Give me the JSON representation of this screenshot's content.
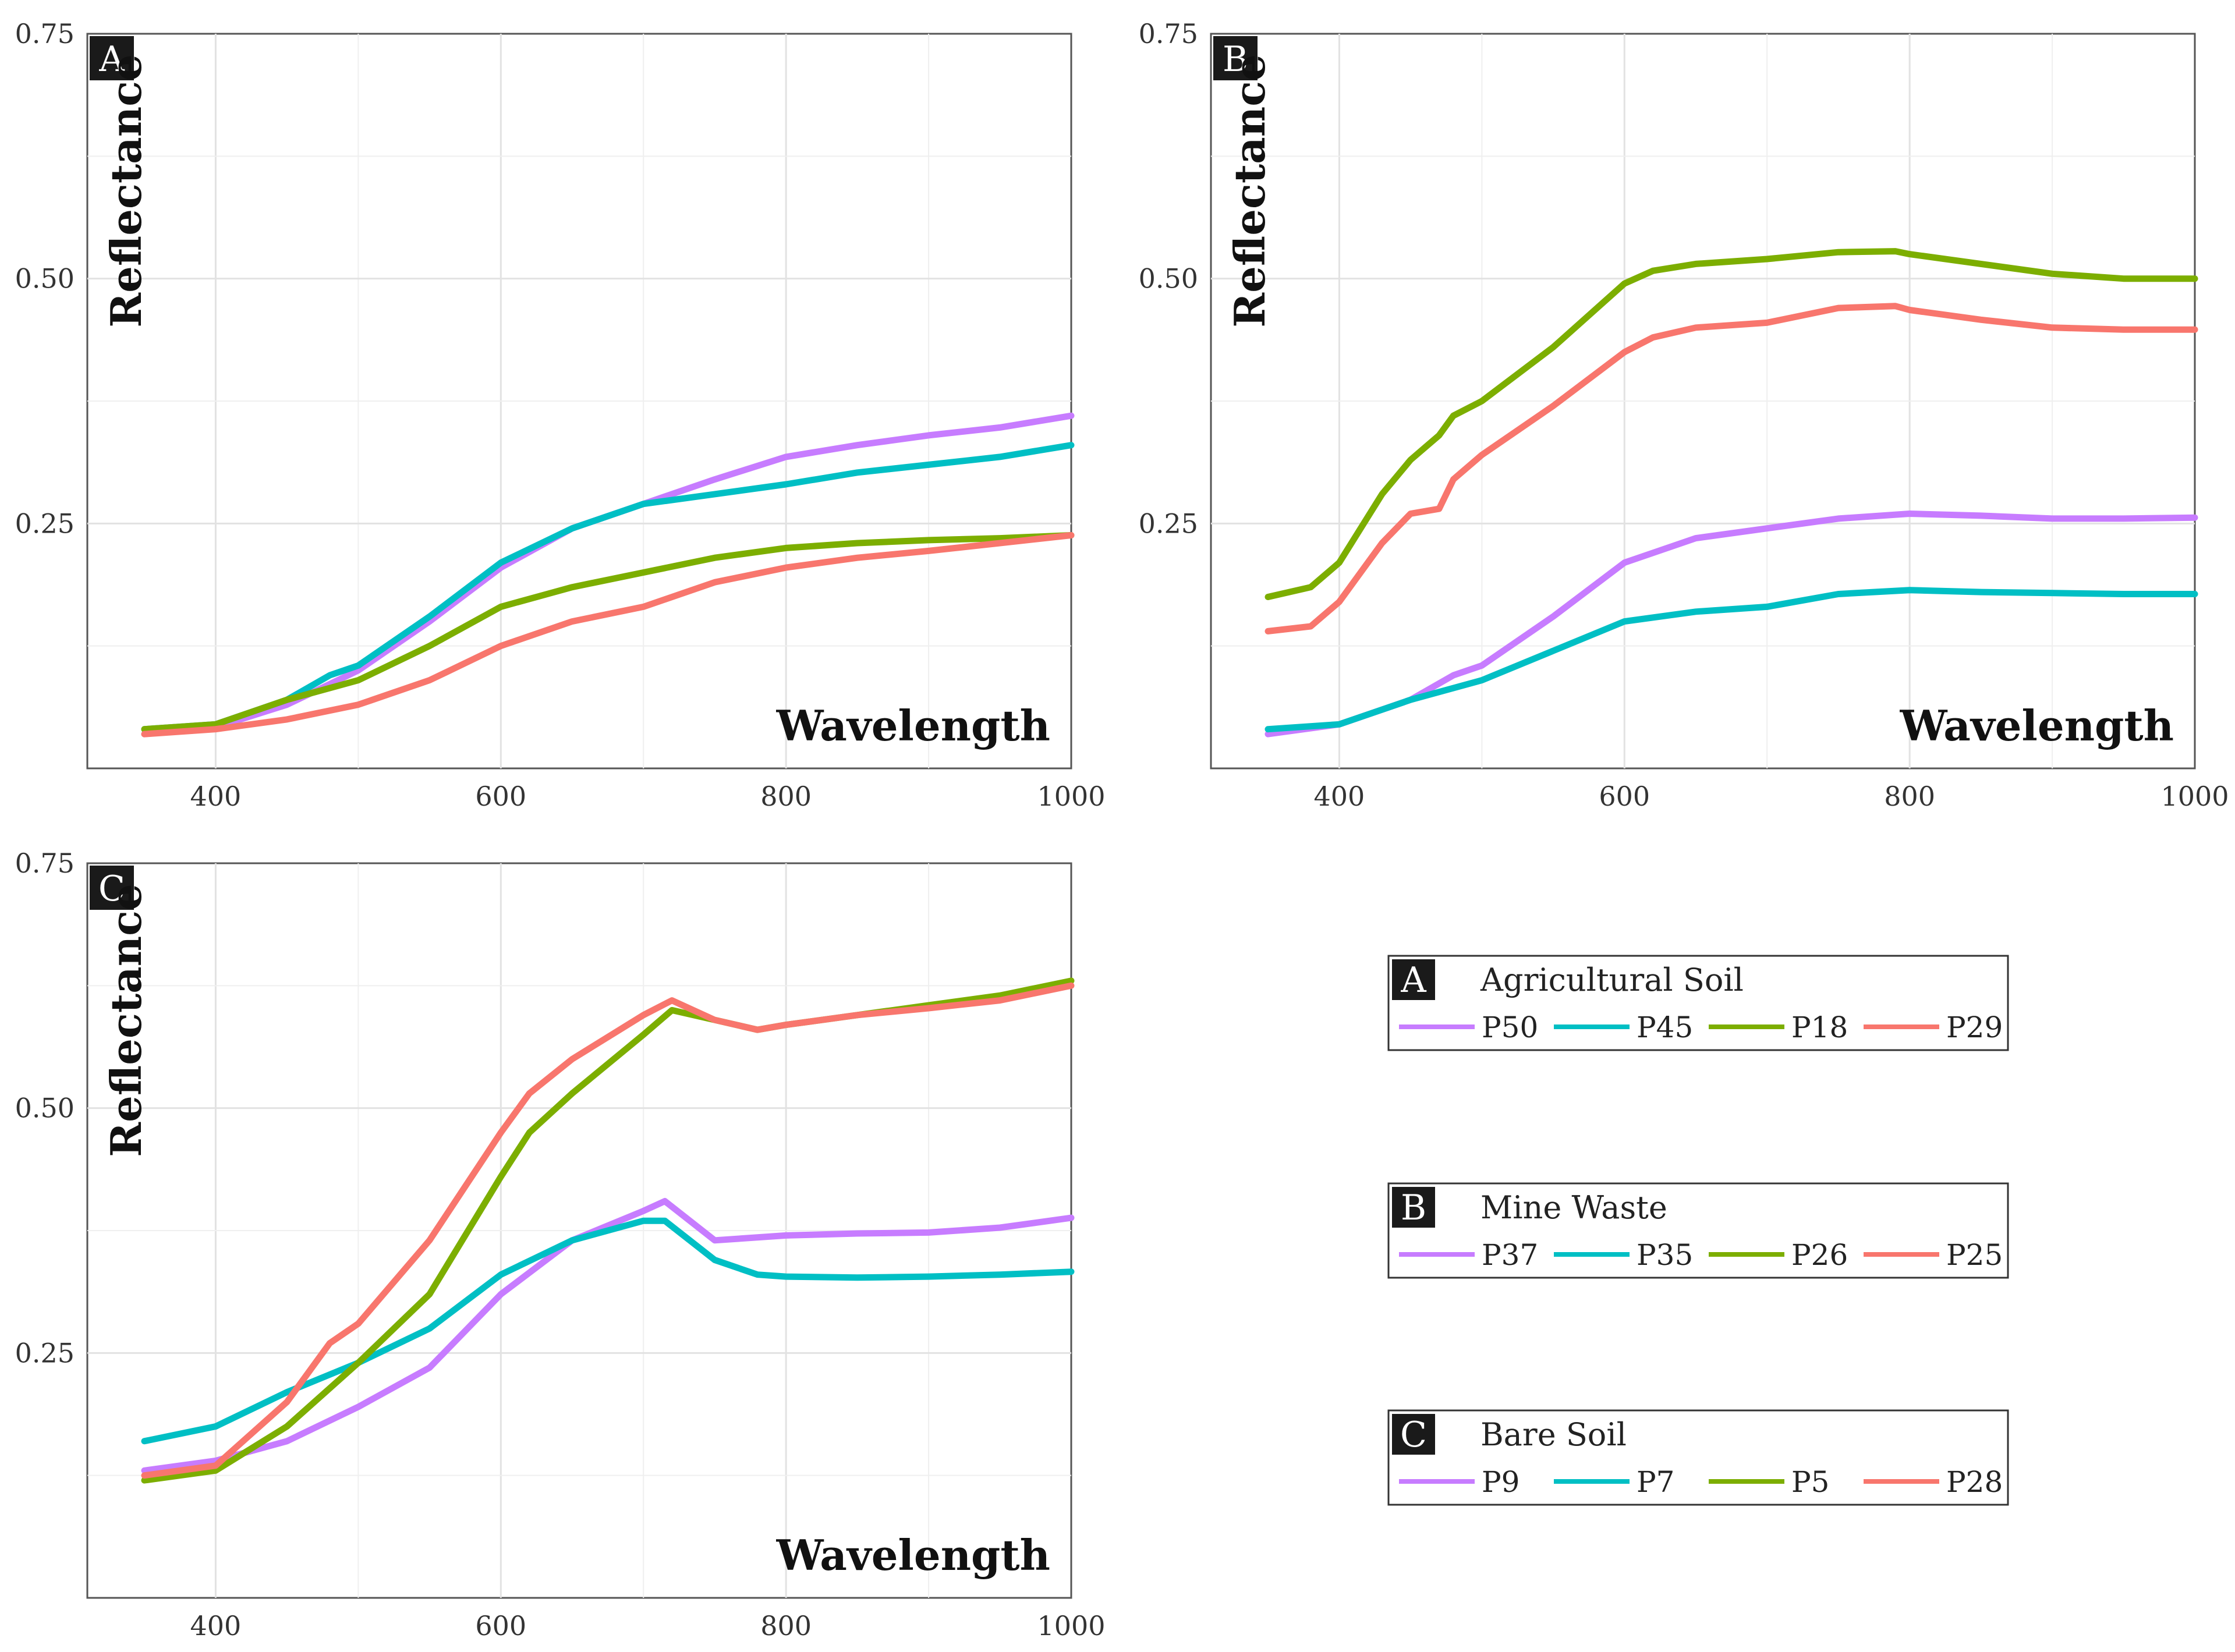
{
  "chart_data": [
    {
      "type": "line",
      "panel": "A",
      "title": "Agricultural Soil",
      "xlabel": "Wavelength",
      "ylabel": "Reflectance",
      "xlim": [
        310,
        1000
      ],
      "ylim": [
        0.0,
        0.75
      ],
      "xticks": [
        400,
        600,
        800,
        1000
      ],
      "yticks": [
        0.25,
        0.5,
        0.75
      ],
      "ytick_labels": [
        "0.25",
        "0.50",
        "0.75"
      ],
      "grid": true,
      "series": [
        {
          "name": "P50",
          "color": "#c77cff",
          "x": [
            350,
            400,
            450,
            500,
            550,
            600,
            650,
            700,
            750,
            800,
            850,
            900,
            950,
            1000
          ],
          "y": [
            0.035,
            0.042,
            0.065,
            0.1,
            0.15,
            0.205,
            0.245,
            0.27,
            0.295,
            0.318,
            0.33,
            0.34,
            0.348,
            0.36
          ]
        },
        {
          "name": "P45",
          "color": "#00bfc4",
          "x": [
            350,
            400,
            450,
            480,
            500,
            550,
            600,
            650,
            700,
            750,
            800,
            850,
            900,
            950,
            1000
          ],
          "y": [
            0.04,
            0.045,
            0.07,
            0.095,
            0.105,
            0.155,
            0.21,
            0.245,
            0.27,
            0.28,
            0.29,
            0.302,
            0.31,
            0.318,
            0.33
          ]
        },
        {
          "name": "P18",
          "color": "#7cae00",
          "x": [
            350,
            400,
            450,
            500,
            550,
            600,
            650,
            700,
            750,
            800,
            850,
            900,
            950,
            1000
          ],
          "y": [
            0.04,
            0.045,
            0.07,
            0.09,
            0.125,
            0.165,
            0.185,
            0.2,
            0.215,
            0.225,
            0.23,
            0.233,
            0.235,
            0.238
          ]
        },
        {
          "name": "P29",
          "color": "#f8766d",
          "x": [
            350,
            400,
            450,
            500,
            550,
            600,
            650,
            700,
            750,
            800,
            850,
            900,
            950,
            1000
          ],
          "y": [
            0.035,
            0.04,
            0.05,
            0.065,
            0.09,
            0.125,
            0.15,
            0.165,
            0.19,
            0.205,
            0.215,
            0.222,
            0.23,
            0.238
          ]
        }
      ]
    },
    {
      "type": "line",
      "panel": "B",
      "title": "Mine Waste",
      "xlabel": "Wavelength",
      "ylabel": "Reflectance",
      "xlim": [
        310,
        1000
      ],
      "ylim": [
        0.0,
        0.75
      ],
      "xticks": [
        400,
        600,
        800,
        1000
      ],
      "yticks": [
        0.25,
        0.5,
        0.75
      ],
      "ytick_labels": [
        "0.25",
        "0.50",
        "0.75"
      ],
      "grid": true,
      "series": [
        {
          "name": "P37",
          "color": "#c77cff",
          "x": [
            350,
            400,
            450,
            480,
            500,
            550,
            600,
            650,
            700,
            750,
            800,
            850,
            900,
            950,
            1000
          ],
          "y": [
            0.035,
            0.045,
            0.07,
            0.095,
            0.105,
            0.155,
            0.21,
            0.235,
            0.245,
            0.255,
            0.26,
            0.258,
            0.255,
            0.255,
            0.256
          ]
        },
        {
          "name": "P35",
          "color": "#00bfc4",
          "x": [
            350,
            400,
            450,
            500,
            550,
            600,
            650,
            700,
            750,
            800,
            850,
            900,
            950,
            1000
          ],
          "y": [
            0.04,
            0.045,
            0.07,
            0.09,
            0.12,
            0.15,
            0.16,
            0.165,
            0.178,
            0.182,
            0.18,
            0.179,
            0.178,
            0.178
          ]
        },
        {
          "name": "P26",
          "color": "#7cae00",
          "x": [
            350,
            380,
            400,
            430,
            450,
            470,
            480,
            500,
            550,
            600,
            620,
            650,
            700,
            750,
            790,
            800,
            850,
            900,
            950,
            1000
          ],
          "y": [
            0.175,
            0.185,
            0.21,
            0.28,
            0.315,
            0.34,
            0.36,
            0.375,
            0.43,
            0.495,
            0.508,
            0.515,
            0.52,
            0.527,
            0.528,
            0.525,
            0.515,
            0.505,
            0.5,
            0.5
          ]
        },
        {
          "name": "P25",
          "color": "#f8766d",
          "x": [
            350,
            380,
            400,
            430,
            450,
            470,
            480,
            500,
            550,
            600,
            620,
            650,
            700,
            750,
            790,
            800,
            850,
            900,
            950,
            1000
          ],
          "y": [
            0.14,
            0.145,
            0.17,
            0.23,
            0.26,
            0.265,
            0.295,
            0.32,
            0.37,
            0.425,
            0.44,
            0.45,
            0.455,
            0.47,
            0.472,
            0.468,
            0.458,
            0.45,
            0.448,
            0.448
          ]
        }
      ]
    },
    {
      "type": "line",
      "panel": "C",
      "title": "Bare Soil",
      "xlabel": "Wavelength",
      "ylabel": "Reflectance",
      "xlim": [
        310,
        1000
      ],
      "ylim": [
        0.0,
        0.75
      ],
      "xticks": [
        400,
        600,
        800,
        1000
      ],
      "yticks": [
        0.25,
        0.5,
        0.75
      ],
      "ytick_labels": [
        "0.25",
        "0.50",
        "0.75"
      ],
      "grid": true,
      "series": [
        {
          "name": "P9",
          "color": "#c77cff",
          "x": [
            350,
            400,
            450,
            500,
            550,
            600,
            650,
            700,
            715,
            750,
            800,
            850,
            900,
            950,
            1000
          ],
          "y": [
            0.13,
            0.14,
            0.16,
            0.195,
            0.235,
            0.31,
            0.365,
            0.395,
            0.405,
            0.365,
            0.37,
            0.372,
            0.373,
            0.378,
            0.388
          ]
        },
        {
          "name": "P7",
          "color": "#00bfc4",
          "x": [
            350,
            400,
            450,
            500,
            550,
            600,
            650,
            700,
            715,
            750,
            780,
            800,
            850,
            900,
            950,
            1000
          ],
          "y": [
            0.16,
            0.175,
            0.21,
            0.24,
            0.275,
            0.33,
            0.365,
            0.385,
            0.385,
            0.345,
            0.33,
            0.328,
            0.327,
            0.328,
            0.33,
            0.333
          ]
        },
        {
          "name": "P5",
          "color": "#7cae00",
          "x": [
            350,
            400,
            450,
            500,
            550,
            600,
            620,
            650,
            700,
            720,
            750,
            780,
            800,
            850,
            900,
            950,
            1000
          ],
          "y": [
            0.12,
            0.13,
            0.175,
            0.24,
            0.31,
            0.43,
            0.475,
            0.515,
            0.575,
            0.6,
            0.59,
            0.58,
            0.585,
            0.595,
            0.605,
            0.615,
            0.63
          ]
        },
        {
          "name": "P28",
          "color": "#f8766d",
          "x": [
            350,
            400,
            450,
            480,
            500,
            550,
            600,
            620,
            650,
            700,
            720,
            750,
            780,
            800,
            850,
            900,
            950,
            1000
          ],
          "y": [
            0.125,
            0.135,
            0.2,
            0.26,
            0.28,
            0.365,
            0.475,
            0.515,
            0.55,
            0.595,
            0.61,
            0.59,
            0.58,
            0.585,
            0.595,
            0.602,
            0.61,
            0.625
          ]
        }
      ]
    }
  ],
  "legends": [
    {
      "badge": "A",
      "title": "Agricultural Soil",
      "items": [
        "P50",
        "P45",
        "P18",
        "P29"
      ],
      "colors": [
        "#c77cff",
        "#00bfc4",
        "#7cae00",
        "#f8766d"
      ]
    },
    {
      "badge": "B",
      "title": "Mine Waste",
      "items": [
        "P37",
        "P35",
        "P26",
        "P25"
      ],
      "colors": [
        "#c77cff",
        "#00bfc4",
        "#7cae00",
        "#f8766d"
      ]
    },
    {
      "badge": "C",
      "title": "Bare Soil",
      "items": [
        "P9",
        "P7",
        "P5",
        "P28"
      ],
      "colors": [
        "#c77cff",
        "#00bfc4",
        "#7cae00",
        "#f8766d"
      ]
    }
  ]
}
